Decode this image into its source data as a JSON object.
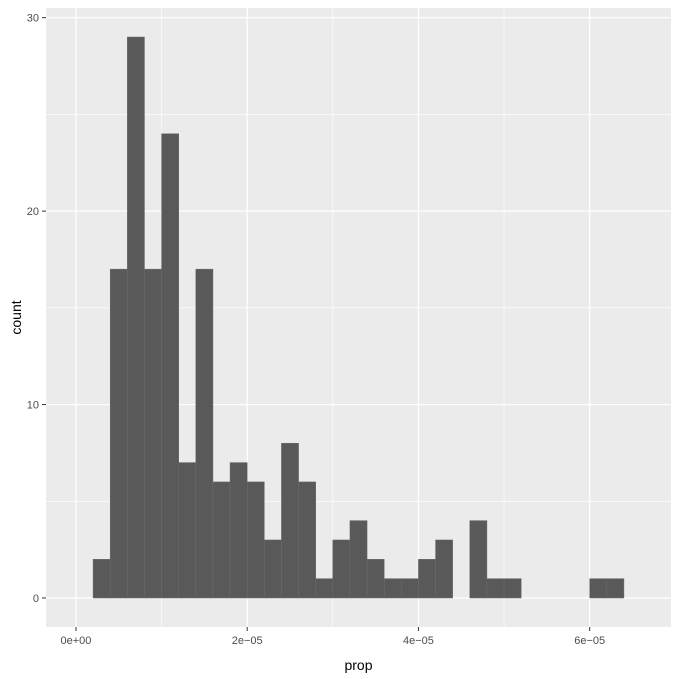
{
  "chart_data": {
    "type": "bar",
    "subtype": "histogram",
    "xlabel": "prop",
    "ylabel": "count",
    "xlim": [
      -3.5e-06,
      6.95e-05
    ],
    "ylim": [
      -1.5,
      30.5
    ],
    "x_ticks": [
      {
        "value": 0,
        "label": "0e+00"
      },
      {
        "value": 2e-05,
        "label": "2e−05"
      },
      {
        "value": 4e-05,
        "label": "4e−05"
      },
      {
        "value": 6e-05,
        "label": "6e−05"
      }
    ],
    "y_ticks": [
      {
        "value": 0,
        "label": "0"
      },
      {
        "value": 10,
        "label": "10"
      },
      {
        "value": 20,
        "label": "20"
      },
      {
        "value": 30,
        "label": "30"
      }
    ],
    "bin_width": 2e-06,
    "bins": [
      {
        "x0": 2e-06,
        "x1": 4e-06,
        "count": 2
      },
      {
        "x0": 4e-06,
        "x1": 6e-06,
        "count": 17
      },
      {
        "x0": 6e-06,
        "x1": 8e-06,
        "count": 29
      },
      {
        "x0": 8e-06,
        "x1": 1e-05,
        "count": 17
      },
      {
        "x0": 1e-05,
        "x1": 1.2e-05,
        "count": 24
      },
      {
        "x0": 1.2e-05,
        "x1": 1.4e-05,
        "count": 7
      },
      {
        "x0": 1.4e-05,
        "x1": 1.6e-05,
        "count": 17
      },
      {
        "x0": 1.6e-05,
        "x1": 1.8e-05,
        "count": 6
      },
      {
        "x0": 1.8e-05,
        "x1": 2e-05,
        "count": 7
      },
      {
        "x0": 2e-05,
        "x1": 2.2e-05,
        "count": 6
      },
      {
        "x0": 2.2e-05,
        "x1": 2.4e-05,
        "count": 3
      },
      {
        "x0": 2.4e-05,
        "x1": 2.6e-05,
        "count": 8
      },
      {
        "x0": 2.6e-05,
        "x1": 2.8e-05,
        "count": 6
      },
      {
        "x0": 2.8e-05,
        "x1": 3e-05,
        "count": 1
      },
      {
        "x0": 3e-05,
        "x1": 3.2e-05,
        "count": 3
      },
      {
        "x0": 3.2e-05,
        "x1": 3.4e-05,
        "count": 4
      },
      {
        "x0": 3.4e-05,
        "x1": 3.6e-05,
        "count": 2
      },
      {
        "x0": 3.6e-05,
        "x1": 3.8e-05,
        "count": 1
      },
      {
        "x0": 3.8e-05,
        "x1": 4e-05,
        "count": 1
      },
      {
        "x0": 4e-05,
        "x1": 4.2e-05,
        "count": 2
      },
      {
        "x0": 4.2e-05,
        "x1": 4.4e-05,
        "count": 3
      },
      {
        "x0": 4.4e-05,
        "x1": 4.6e-05,
        "count": 0
      },
      {
        "x0": 4.6e-05,
        "x1": 4.8e-05,
        "count": 4
      },
      {
        "x0": 4.8e-05,
        "x1": 5e-05,
        "count": 1
      },
      {
        "x0": 5e-05,
        "x1": 5.2e-05,
        "count": 1
      },
      {
        "x0": 5.2e-05,
        "x1": 5.4e-05,
        "count": 0
      },
      {
        "x0": 5.4e-05,
        "x1": 5.6e-05,
        "count": 0
      },
      {
        "x0": 5.6e-05,
        "x1": 5.8e-05,
        "count": 0
      },
      {
        "x0": 5.8e-05,
        "x1": 6e-05,
        "count": 0
      },
      {
        "x0": 6e-05,
        "x1": 6.2e-05,
        "count": 1
      },
      {
        "x0": 6.2e-05,
        "x1": 6.4e-05,
        "count": 1
      }
    ],
    "grid": true,
    "legend": "none",
    "colors": {
      "panel": "#ebebeb",
      "grid": "#ffffff",
      "bar_fill": "#595959",
      "bar_stroke": "#6b6b6b",
      "tick_label": "#4d4d4d",
      "axis_title": "#000000"
    }
  }
}
